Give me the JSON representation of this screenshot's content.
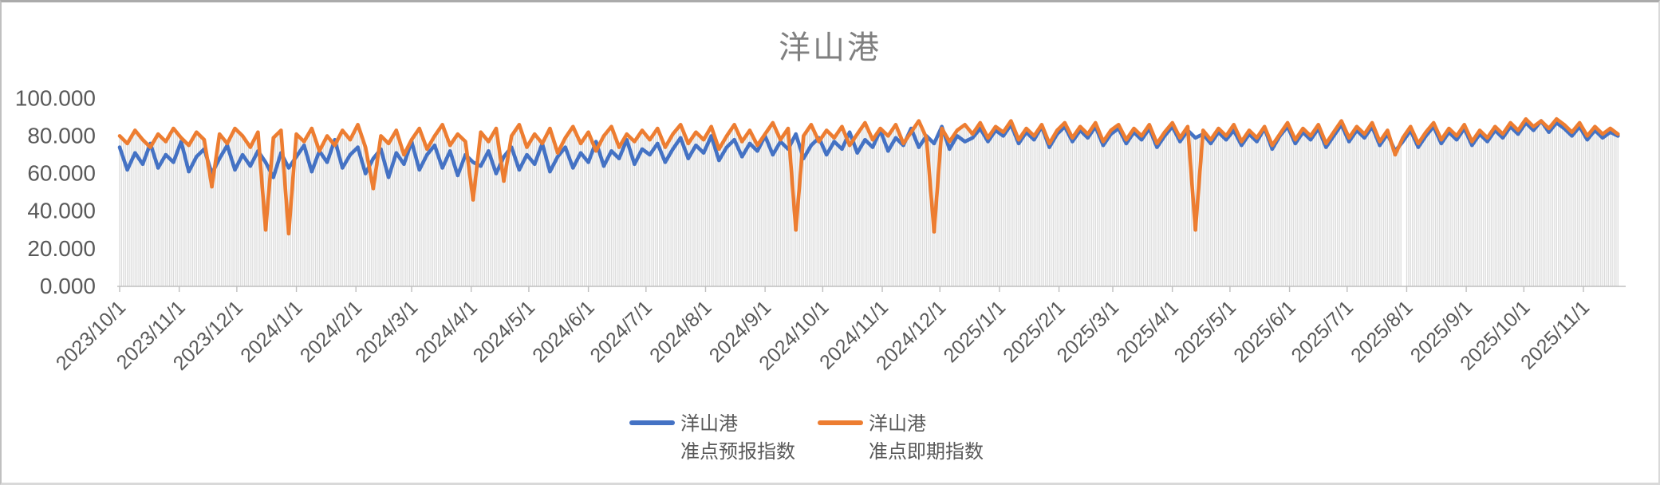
{
  "chart_data": {
    "type": "line",
    "title": "洋山港",
    "x_start_date": "2023/10/1",
    "sample_interval_days": 4,
    "x_tick_labels": [
      "2023/10/1",
      "2023/11/1",
      "2023/12/1",
      "2024/1/1",
      "2024/2/1",
      "2024/3/1",
      "2024/4/1",
      "2024/5/1",
      "2024/6/1",
      "2024/7/1",
      "2024/8/1",
      "2024/9/1",
      "2024/10/1",
      "2024/11/1",
      "2024/12/1",
      "2025/1/1",
      "2025/2/1",
      "2025/3/1",
      "2025/4/1",
      "2025/5/1",
      "2025/6/1",
      "2025/7/1",
      "2025/8/1",
      "2025/9/1",
      "2025/10/1",
      "2025/11/1"
    ],
    "y_tick_labels": [
      "100.000",
      "80.000",
      "60.000",
      "40.000",
      "20.000",
      "0.000"
    ],
    "y_tick_values": [
      100,
      80,
      60,
      40,
      20,
      0
    ],
    "ylim": [
      0,
      100
    ],
    "gridlines": false,
    "legend_position": "bottom",
    "axis_color": "#bfbfbf",
    "label_color": "#595959",
    "title_color": "#808080",
    "drop_line_color": "#dbdbdb",
    "missing_dates": [
      "2025/7/30",
      "2025/7/31"
    ],
    "series": [
      {
        "name": "洋山港准点预报指数",
        "legend_line1": "洋山港",
        "legend_line2": "准点预报指数",
        "color": "#4472c4",
        "values": [
          74,
          62,
          71,
          65,
          76,
          63,
          70,
          66,
          77,
          61,
          69,
          73,
          60,
          68,
          75,
          62,
          70,
          64,
          72,
          66,
          58,
          71,
          63,
          69,
          75,
          61,
          72,
          66,
          78,
          63,
          70,
          74,
          60,
          68,
          73,
          58,
          71,
          65,
          77,
          62,
          70,
          75,
          63,
          72,
          59,
          70,
          66,
          64,
          72,
          60,
          69,
          74,
          62,
          70,
          65,
          76,
          61,
          69,
          74,
          63,
          71,
          66,
          77,
          64,
          72,
          68,
          78,
          65,
          73,
          70,
          76,
          66,
          73,
          79,
          68,
          75,
          71,
          80,
          67,
          74,
          78,
          69,
          76,
          72,
          80,
          70,
          77,
          73,
          81,
          68,
          75,
          79,
          70,
          77,
          73,
          82,
          71,
          78,
          74,
          83,
          72,
          79,
          75,
          84,
          74,
          80,
          76,
          85,
          73,
          80,
          77,
          79,
          84,
          77,
          83,
          80,
          86,
          76,
          82,
          78,
          85,
          74,
          81,
          85,
          77,
          83,
          79,
          85,
          75,
          81,
          84,
          76,
          82,
          78,
          84,
          74,
          80,
          85,
          77,
          83,
          79,
          81,
          76,
          82,
          78,
          83,
          75,
          81,
          77,
          84,
          73,
          80,
          85,
          76,
          82,
          78,
          84,
          74,
          80,
          86,
          77,
          83,
          79,
          85,
          75,
          81,
          72,
          77,
          83,
          74,
          80,
          85,
          76,
          82,
          78,
          84,
          75,
          81,
          77,
          83,
          79,
          85,
          81,
          87,
          83,
          88,
          82,
          87,
          84,
          80,
          85,
          78,
          83,
          79,
          82,
          80
        ]
      },
      {
        "name": "洋山港准点即期指数",
        "legend_line1": "洋山港",
        "legend_line2": "准点即期指数",
        "color": "#ed7d31",
        "values": [
          80,
          76,
          83,
          78,
          74,
          81,
          77,
          84,
          79,
          75,
          82,
          78,
          53,
          81,
          76,
          84,
          80,
          74,
          82,
          30,
          79,
          83,
          28,
          81,
          77,
          84,
          72,
          80,
          75,
          83,
          78,
          86,
          74,
          52,
          80,
          76,
          83,
          70,
          78,
          84,
          73,
          80,
          86,
          75,
          81,
          77,
          46,
          82,
          77,
          84,
          56,
          80,
          86,
          74,
          81,
          76,
          84,
          71,
          79,
          85,
          76,
          82,
          72,
          80,
          85,
          74,
          81,
          77,
          83,
          78,
          84,
          74,
          81,
          86,
          76,
          82,
          78,
          85,
          73,
          80,
          86,
          77,
          83,
          75,
          81,
          87,
          78,
          84,
          30,
          80,
          86,
          77,
          83,
          79,
          85,
          75,
          81,
          87,
          78,
          84,
          80,
          86,
          76,
          82,
          88,
          79,
          29,
          84,
          77,
          83,
          86,
          81,
          87,
          79,
          85,
          82,
          88,
          78,
          84,
          80,
          86,
          76,
          83,
          87,
          79,
          85,
          81,
          87,
          77,
          83,
          86,
          78,
          84,
          80,
          86,
          76,
          82,
          87,
          79,
          85,
          30,
          83,
          78,
          84,
          80,
          86,
          77,
          83,
          79,
          85,
          75,
          81,
          87,
          78,
          84,
          80,
          86,
          76,
          82,
          88,
          79,
          85,
          81,
          87,
          77,
          83,
          70,
          79,
          85,
          76,
          82,
          87,
          78,
          84,
          80,
          86,
          77,
          83,
          79,
          85,
          81,
          87,
          83,
          89,
          85,
          88,
          84,
          89,
          86,
          82,
          87,
          80,
          85,
          81,
          84,
          81
        ]
      }
    ]
  }
}
